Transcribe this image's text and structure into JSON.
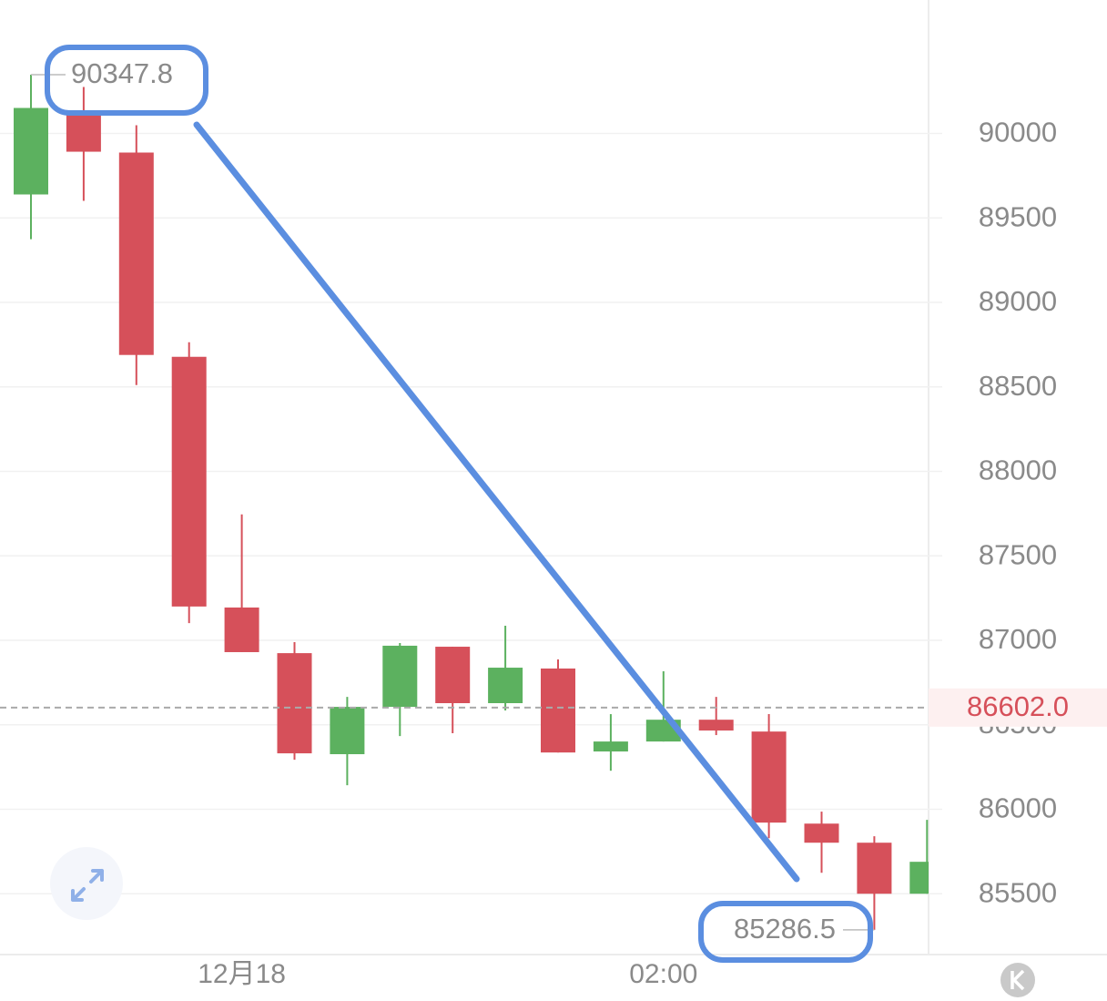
{
  "chart_data": {
    "type": "candlestick",
    "categories": [
      null,
      null,
      null,
      null,
      "12月18",
      null,
      null,
      null,
      null,
      null,
      null,
      null,
      "02:00",
      null,
      null,
      null,
      null,
      null
    ],
    "open": [
      89639,
      90113,
      89887,
      88678,
      87194,
      86924,
      86326,
      86606,
      86962,
      86628,
      86833,
      86342,
      86401,
      86530,
      86460,
      85915,
      85802,
      85500
    ],
    "high": [
      90347.8,
      90275,
      90049,
      88764,
      87745,
      86989,
      86665,
      86984,
      86962,
      87086,
      86887,
      86563,
      86817,
      86665,
      86563,
      85986,
      85840,
      85937
    ],
    "low": [
      89374,
      89601,
      88511,
      87102,
      86930,
      86293,
      86142,
      86433,
      86450,
      86585,
      86336,
      86228,
      86401,
      86439,
      85829,
      85624,
      85286.5,
      85500
    ],
    "close": [
      90151,
      89892,
      88689,
      87200,
      86930,
      86331,
      86606,
      86968,
      86628,
      86838,
      86336,
      86401,
      86530,
      86466,
      85921,
      85802,
      85500,
      85689
    ],
    "up_color": "#5cb15f",
    "down_color": "#d6505a",
    "ylim": [
      85140,
      90790
    ],
    "yticks": [
      85500,
      86000,
      86500,
      87000,
      87500,
      88000,
      88500,
      89000,
      89500,
      90000
    ],
    "grid": true,
    "last_price": {
      "value": 86602.0,
      "label": "86602.0"
    },
    "high_marker": 90347.8,
    "low_marker": 85286.5
  }
}
